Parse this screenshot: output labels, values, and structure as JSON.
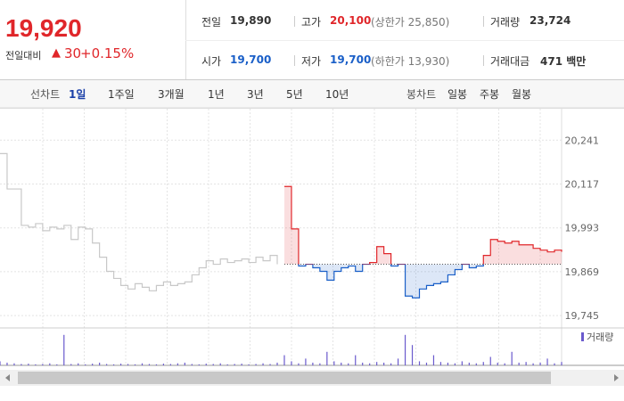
{
  "header": {
    "price": "19,920",
    "change_label": "전일대비",
    "change": "30",
    "change_rate": "+0.15%"
  },
  "summary": [
    [
      {
        "label": "전일",
        "value": "19,890"
      },
      {
        "label": "고가",
        "value": "20,100",
        "note": "(상한가 25,850)"
      },
      {
        "label": "거래량",
        "value": "23,724"
      }
    ],
    [
      {
        "label": "시가",
        "value": "19,700"
      },
      {
        "label": "저가",
        "value": "19,700",
        "note": "(하한가 13,930)"
      },
      {
        "label": "거래대금",
        "value": "471 백만"
      }
    ]
  ],
  "tabs": {
    "line_label": "선차트",
    "line": [
      "1일",
      "1주일",
      "3개월",
      "1년",
      "3년",
      "5년",
      "10년"
    ],
    "candle_label": "봉차트",
    "candle": [
      "일봉",
      "주봉",
      "월봉"
    ]
  },
  "chart_data": {
    "type": "line",
    "ylim": [
      19720,
      20330
    ],
    "yticks": [
      {
        "value": 20241,
        "label": "20,241"
      },
      {
        "value": 20117,
        "label": "20,117"
      },
      {
        "value": 19993,
        "label": "19,993"
      },
      {
        "value": 19869,
        "label": "19,869"
      },
      {
        "value": 19745,
        "label": "19,745"
      }
    ],
    "baseline": 19890,
    "categories": [
      null,
      null,
      null,
      null,
      null,
      null,
      null,
      null,
      null,
      null,
      null,
      null,
      null,
      null,
      null,
      null,
      null,
      null,
      null,
      null,
      null,
      null,
      null,
      null,
      null,
      null,
      null,
      null,
      null,
      null,
      null,
      null,
      null,
      null,
      null,
      null,
      null,
      null,
      null,
      null,
      null,
      null,
      null,
      null,
      null,
      null,
      null,
      null,
      null,
      null,
      null,
      null,
      null,
      null,
      null,
      null,
      null,
      null,
      null,
      null,
      null,
      null,
      null,
      null,
      null,
      null,
      null,
      null,
      null,
      null,
      null,
      null,
      null,
      null,
      null,
      null,
      null,
      null,
      null,
      null
    ],
    "series": [
      {
        "color": "#c8c8c8",
        "values": [
          20203,
          20103,
          20103,
          20000,
          19995,
          20005,
          19985,
          19995,
          19990,
          20000,
          19960,
          19995,
          19990,
          19950,
          19910,
          19870,
          19850,
          19830,
          19820,
          19835,
          19825,
          19815,
          19830,
          19840,
          19830,
          19835,
          19840,
          19860,
          19880,
          19900,
          19890,
          19905,
          19895,
          19900,
          19905,
          19895,
          19910,
          19900,
          19915,
          19890,
          null,
          null,
          null,
          null,
          null,
          null,
          null,
          null,
          null,
          null,
          null,
          null,
          null,
          null,
          null,
          null,
          null,
          null,
          null,
          null,
          null,
          null,
          null,
          null,
          null,
          null,
          null,
          null,
          null,
          null,
          null,
          null,
          null,
          null,
          null,
          null,
          null,
          null,
          null,
          null
        ]
      },
      {
        "color": "#e0262a",
        "color_below": "#1a5fc8",
        "values": [
          null,
          null,
          null,
          null,
          null,
          null,
          null,
          null,
          null,
          null,
          null,
          null,
          null,
          null,
          null,
          null,
          null,
          null,
          null,
          null,
          null,
          null,
          null,
          null,
          null,
          null,
          null,
          null,
          null,
          null,
          null,
          null,
          null,
          null,
          null,
          null,
          null,
          null,
          null,
          null,
          20110,
          19990,
          19885,
          19890,
          19880,
          19870,
          19845,
          19870,
          19880,
          19885,
          19870,
          19890,
          19895,
          19940,
          19920,
          19885,
          19890,
          19800,
          19795,
          19820,
          19830,
          19835,
          19840,
          19860,
          19875,
          19890,
          19880,
          19885,
          19915,
          19960,
          19955,
          19950,
          19955,
          19945,
          19945,
          19935,
          19930,
          19925,
          19930,
          19925
        ]
      }
    ],
    "volume": {
      "name": "거래량",
      "color": "#6a5acd",
      "ylim": [
        0,
        1000
      ],
      "values": [
        120,
        80,
        60,
        40,
        50,
        30,
        40,
        60,
        30,
        900,
        40,
        60,
        30,
        50,
        80,
        40,
        30,
        50,
        40,
        30,
        60,
        40,
        30,
        50,
        40,
        60,
        80,
        40,
        30,
        50,
        40,
        60,
        30,
        40,
        50,
        30,
        40,
        60,
        40,
        80,
        300,
        120,
        60,
        200,
        80,
        60,
        400,
        120,
        80,
        60,
        300,
        80,
        60,
        100,
        80,
        60,
        200,
        900,
        600,
        120,
        80,
        300,
        100,
        80,
        60,
        120,
        80,
        60,
        100,
        250,
        80,
        60,
        400,
        80,
        100,
        60,
        80,
        200,
        60,
        100
      ]
    }
  }
}
